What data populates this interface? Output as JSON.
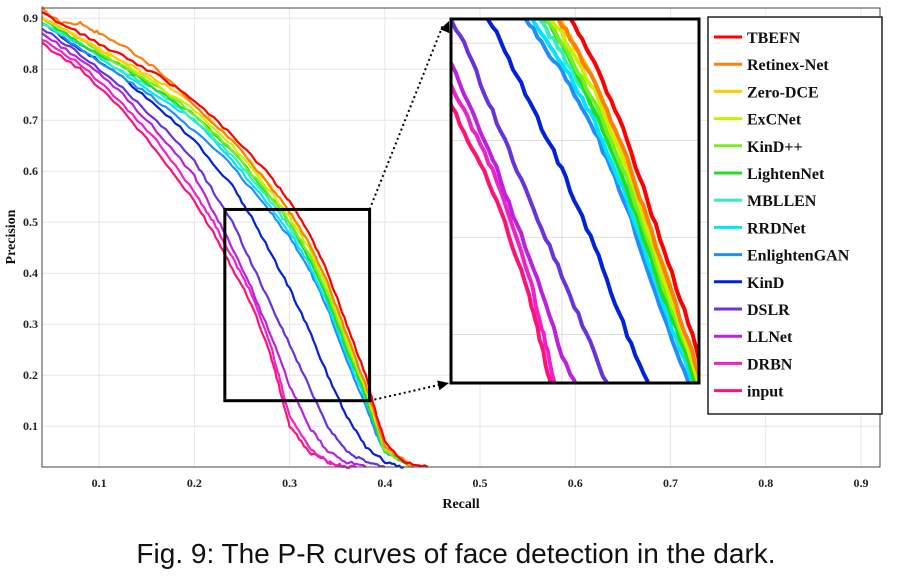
{
  "caption": "Fig. 9: The P-R curves of face detection in the dark.",
  "chart_data": {
    "type": "line",
    "title": "",
    "xlabel": "Recall",
    "ylabel": "Precision",
    "xlim": [
      0.04,
      0.92
    ],
    "ylim": [
      0.02,
      0.92
    ],
    "xticks": [
      "0.1",
      "0.2",
      "0.3",
      "0.4",
      "0.5",
      "0.6",
      "0.7",
      "0.8",
      "0.9"
    ],
    "yticks": [
      "0.1",
      "0.2",
      "0.3",
      "0.4",
      "0.5",
      "0.6",
      "0.7",
      "0.8",
      "0.9"
    ],
    "grid": true,
    "legend_position": "top-right",
    "zoom_region": {
      "x": [
        0.232,
        0.384
      ],
      "y": [
        0.15,
        0.525
      ]
    },
    "series": [
      {
        "name": "TBEFN",
        "color": "#ff0000",
        "x": [
          0.04,
          0.08,
          0.12,
          0.16,
          0.2,
          0.24,
          0.28,
          0.3,
          0.32,
          0.34,
          0.36,
          0.38,
          0.39,
          0.4,
          0.42,
          0.445
        ],
        "y": [
          0.91,
          0.87,
          0.83,
          0.79,
          0.74,
          0.67,
          0.59,
          0.54,
          0.48,
          0.4,
          0.3,
          0.2,
          0.13,
          0.07,
          0.03,
          0.02
        ]
      },
      {
        "name": "Retinex-Net",
        "color": "#ff7f0e",
        "x": [
          0.04,
          0.06,
          0.08,
          0.1,
          0.13,
          0.16,
          0.2,
          0.24,
          0.28,
          0.3,
          0.32,
          0.34,
          0.36,
          0.38,
          0.39,
          0.4,
          0.43
        ],
        "y": [
          0.92,
          0.89,
          0.89,
          0.87,
          0.84,
          0.8,
          0.73,
          0.66,
          0.57,
          0.52,
          0.46,
          0.38,
          0.28,
          0.18,
          0.12,
          0.06,
          0.02
        ]
      },
      {
        "name": "Zero-DCE",
        "color": "#ffcc00",
        "x": [
          0.04,
          0.08,
          0.12,
          0.16,
          0.2,
          0.24,
          0.28,
          0.3,
          0.32,
          0.34,
          0.36,
          0.38,
          0.39,
          0.4,
          0.43
        ],
        "y": [
          0.9,
          0.86,
          0.82,
          0.78,
          0.73,
          0.66,
          0.57,
          0.52,
          0.46,
          0.38,
          0.28,
          0.18,
          0.12,
          0.06,
          0.02
        ]
      },
      {
        "name": "ExCNet",
        "color": "#ccee00",
        "x": [
          0.04,
          0.08,
          0.12,
          0.16,
          0.2,
          0.24,
          0.28,
          0.3,
          0.32,
          0.34,
          0.36,
          0.38,
          0.39,
          0.4,
          0.43
        ],
        "y": [
          0.9,
          0.86,
          0.82,
          0.77,
          0.72,
          0.65,
          0.56,
          0.51,
          0.45,
          0.37,
          0.27,
          0.17,
          0.11,
          0.06,
          0.02
        ]
      },
      {
        "name": "KinD++",
        "color": "#77ee22",
        "x": [
          0.04,
          0.08,
          0.12,
          0.16,
          0.2,
          0.24,
          0.28,
          0.3,
          0.32,
          0.34,
          0.36,
          0.38,
          0.39,
          0.4,
          0.43
        ],
        "y": [
          0.9,
          0.86,
          0.81,
          0.77,
          0.71,
          0.64,
          0.55,
          0.5,
          0.44,
          0.36,
          0.26,
          0.17,
          0.11,
          0.05,
          0.02
        ]
      },
      {
        "name": "LightenNet",
        "color": "#22dd22",
        "x": [
          0.04,
          0.08,
          0.12,
          0.16,
          0.2,
          0.24,
          0.28,
          0.3,
          0.32,
          0.34,
          0.36,
          0.38,
          0.39,
          0.4,
          0.43
        ],
        "y": [
          0.9,
          0.85,
          0.81,
          0.76,
          0.71,
          0.64,
          0.55,
          0.5,
          0.43,
          0.35,
          0.25,
          0.16,
          0.1,
          0.05,
          0.02
        ]
      },
      {
        "name": "MBLLEN",
        "color": "#33eebb",
        "x": [
          0.04,
          0.08,
          0.12,
          0.16,
          0.2,
          0.24,
          0.28,
          0.3,
          0.32,
          0.34,
          0.36,
          0.38,
          0.39,
          0.4,
          0.43
        ],
        "y": [
          0.89,
          0.85,
          0.8,
          0.76,
          0.7,
          0.63,
          0.54,
          0.49,
          0.43,
          0.35,
          0.25,
          0.16,
          0.1,
          0.05,
          0.02
        ]
      },
      {
        "name": "RRDNet",
        "color": "#00e5ff",
        "x": [
          0.04,
          0.08,
          0.12,
          0.16,
          0.2,
          0.24,
          0.28,
          0.3,
          0.32,
          0.34,
          0.36,
          0.38,
          0.39,
          0.4,
          0.43
        ],
        "y": [
          0.89,
          0.85,
          0.8,
          0.75,
          0.7,
          0.62,
          0.53,
          0.48,
          0.42,
          0.34,
          0.24,
          0.15,
          0.1,
          0.05,
          0.02
        ]
      },
      {
        "name": "EnlightenGAN",
        "color": "#1f8fff",
        "x": [
          0.04,
          0.08,
          0.12,
          0.16,
          0.2,
          0.24,
          0.28,
          0.3,
          0.32,
          0.34,
          0.36,
          0.38,
          0.39,
          0.4,
          0.43
        ],
        "y": [
          0.89,
          0.84,
          0.79,
          0.74,
          0.68,
          0.61,
          0.52,
          0.47,
          0.41,
          0.33,
          0.23,
          0.14,
          0.09,
          0.05,
          0.02
        ]
      },
      {
        "name": "KinD",
        "color": "#0022dd",
        "x": [
          0.04,
          0.08,
          0.12,
          0.16,
          0.2,
          0.24,
          0.26,
          0.28,
          0.3,
          0.32,
          0.34,
          0.36,
          0.38,
          0.4,
          0.42
        ],
        "y": [
          0.89,
          0.84,
          0.79,
          0.73,
          0.66,
          0.57,
          0.51,
          0.44,
          0.37,
          0.29,
          0.2,
          0.12,
          0.06,
          0.03,
          0.02
        ]
      },
      {
        "name": "DSLR",
        "color": "#6633dd",
        "x": [
          0.04,
          0.08,
          0.12,
          0.16,
          0.2,
          0.22,
          0.24,
          0.26,
          0.28,
          0.3,
          0.32,
          0.34,
          0.36,
          0.38,
          0.4
        ],
        "y": [
          0.88,
          0.83,
          0.77,
          0.7,
          0.62,
          0.56,
          0.5,
          0.42,
          0.34,
          0.26,
          0.18,
          0.1,
          0.05,
          0.03,
          0.02
        ]
      },
      {
        "name": "LLNet",
        "color": "#bb22dd",
        "x": [
          0.04,
          0.08,
          0.12,
          0.16,
          0.2,
          0.22,
          0.24,
          0.26,
          0.28,
          0.3,
          0.32,
          0.34,
          0.36,
          0.38
        ],
        "y": [
          0.87,
          0.82,
          0.76,
          0.68,
          0.59,
          0.52,
          0.45,
          0.37,
          0.28,
          0.18,
          0.1,
          0.05,
          0.03,
          0.02
        ]
      },
      {
        "name": "DRBN",
        "color": "#ee22cc",
        "x": [
          0.04,
          0.08,
          0.12,
          0.16,
          0.2,
          0.22,
          0.24,
          0.26,
          0.28,
          0.29,
          0.3,
          0.32,
          0.34,
          0.36,
          0.37
        ],
        "y": [
          0.86,
          0.81,
          0.74,
          0.66,
          0.56,
          0.5,
          0.43,
          0.36,
          0.26,
          0.19,
          0.12,
          0.06,
          0.03,
          0.02,
          0.02
        ]
      },
      {
        "name": "input",
        "color": "#ff1177",
        "x": [
          0.04,
          0.08,
          0.12,
          0.16,
          0.2,
          0.22,
          0.24,
          0.26,
          0.28,
          0.29,
          0.3,
          0.32,
          0.34,
          0.36
        ],
        "y": [
          0.85,
          0.8,
          0.73,
          0.64,
          0.54,
          0.48,
          0.41,
          0.34,
          0.24,
          0.17,
          0.1,
          0.05,
          0.03,
          0.02
        ]
      }
    ]
  }
}
